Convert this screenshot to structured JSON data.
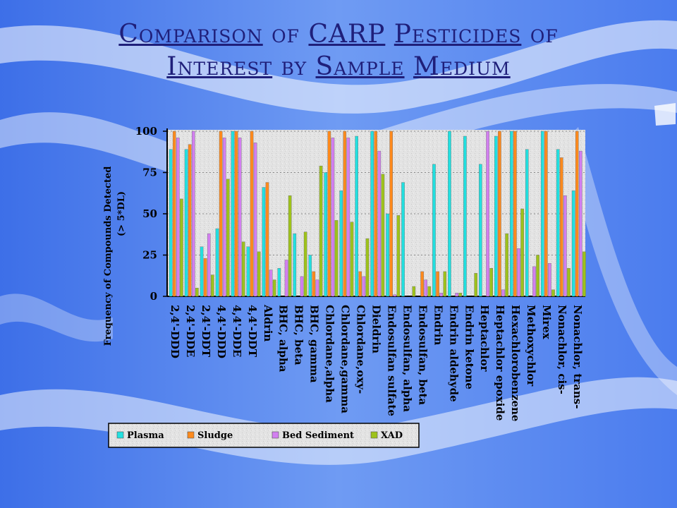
{
  "slide": {
    "title_words": [
      {
        "text": "Comparison",
        "underline": true
      },
      {
        "text": " of ",
        "underline": false
      },
      {
        "text": "CARP",
        "underline": true
      },
      {
        "text": " ",
        "underline": false
      },
      {
        "text": "Pesticides",
        "underline": true
      },
      {
        "text": " of ",
        "underline": false
      },
      {
        "text": "Interest",
        "underline": true
      },
      {
        "text": " by ",
        "underline": false
      },
      {
        "text": "Sample",
        "underline": true
      },
      {
        "text": " ",
        "underline": false
      },
      {
        "text": "Medium",
        "underline": true
      }
    ],
    "title_color": "#1f1f7a",
    "background_color": "#5b8cf0"
  },
  "chart_data": {
    "type": "bar",
    "title": "Comparison of CARP Pesticides of Interest by Sample Medium",
    "ylabel_line1": "Frequency of Compounds Detected",
    "ylabel_line2": "(> 5*DL)",
    "xlabel": "",
    "ylim": [
      0,
      100
    ],
    "yticks": [
      0,
      25,
      50,
      75,
      100
    ],
    "grid": true,
    "legend_position": "bottom",
    "categories": [
      "2,4'-DDD",
      "2,4'-DDE",
      "2,4'-DDT",
      "4,4'-DDD",
      "4,4'-DDE",
      "4,4'-DDT",
      "Aldrin",
      "BHC, alpha",
      "BHC, beta",
      "BHC, gamma",
      "Chlordane,alpha",
      "Chlordane,gamma",
      "Chlordane,oxy-",
      "Dieldrin",
      "Endosulfan sulfate",
      "Endosulfan, alpha",
      "Endosulfan, beta",
      "Endrin",
      "Endrin aldehyde",
      "Endrin ketone",
      "Heptachlor",
      "Heptachlor epoxide",
      "Hexachlorobenzene",
      "Methoxychlor",
      "Mirex",
      "Nonachlor, cis-",
      "Nonachlor, trans-"
    ],
    "series": [
      {
        "name": "Plasma",
        "color": "#22e0e0",
        "values": [
          89,
          89,
          30,
          41,
          100,
          30,
          66,
          17,
          38,
          25,
          75,
          64,
          97,
          100,
          50,
          69,
          0,
          80,
          100,
          97,
          80,
          97,
          100,
          89,
          100,
          89,
          64
        ]
      },
      {
        "name": "Sludge",
        "color": "#ff8a1c",
        "values": [
          100,
          92,
          23,
          100,
          100,
          100,
          69,
          0,
          0,
          15,
          100,
          100,
          15,
          100,
          100,
          0,
          15,
          15,
          0,
          0,
          0,
          100,
          100,
          0,
          100,
          84,
          100
        ]
      },
      {
        "name": "Bed Sediment",
        "color": "#d27ff0",
        "values": [
          96,
          100,
          38,
          96,
          96,
          93,
          16,
          22,
          12,
          10,
          96,
          96,
          12,
          88,
          1,
          0,
          10,
          2,
          2,
          0,
          100,
          4,
          29,
          18,
          20,
          61,
          88
        ]
      },
      {
        "name": "XAD",
        "color": "#9ec21a",
        "values": [
          59,
          5,
          13,
          71,
          33,
          27,
          10,
          61,
          39,
          79,
          46,
          45,
          35,
          74,
          49,
          6,
          6,
          15,
          2,
          14,
          17,
          38,
          53,
          25,
          4,
          17,
          27
        ]
      }
    ]
  }
}
